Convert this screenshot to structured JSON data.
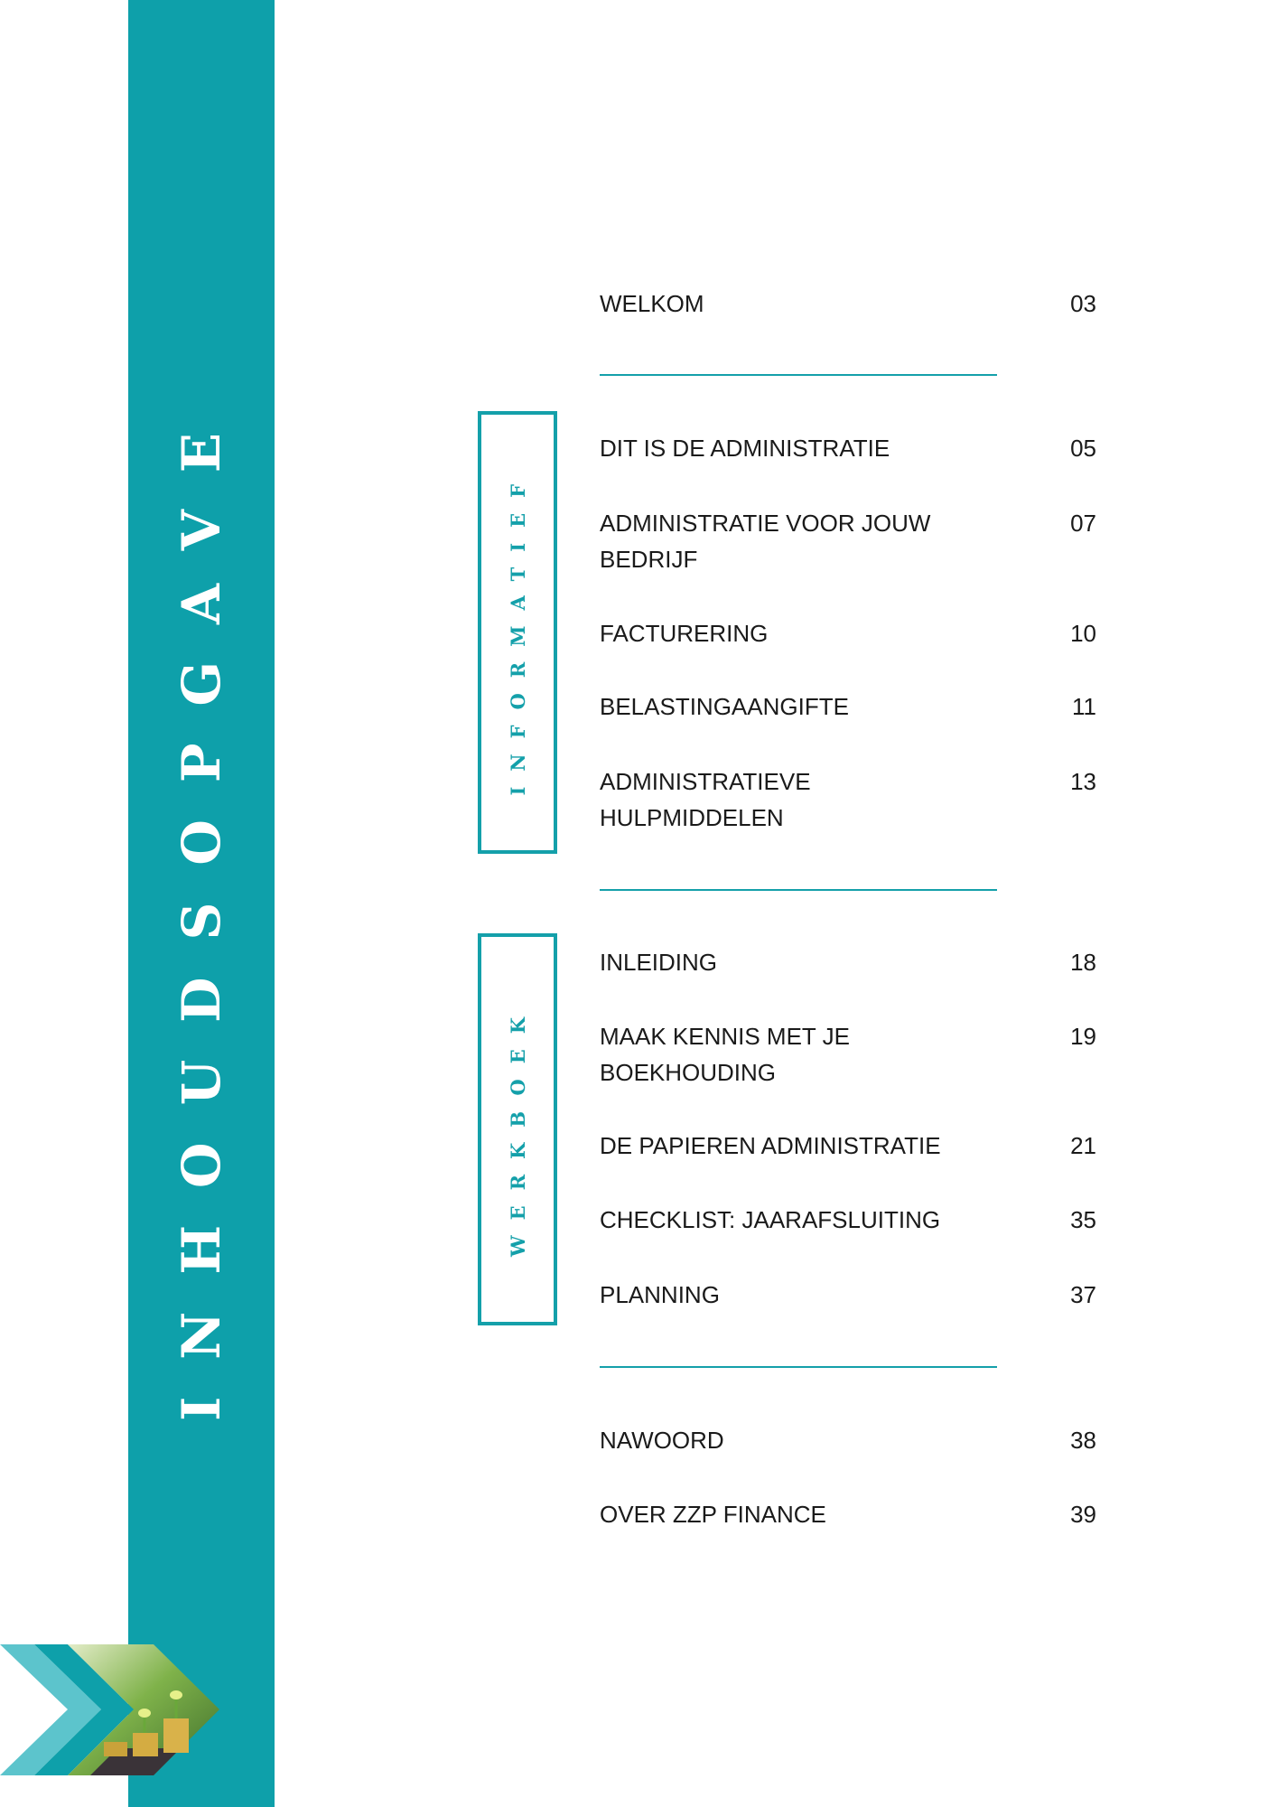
{
  "title": "INHOUDSOPGAVE",
  "colors": {
    "accent": "#0ea0aa",
    "light_accent": "#5cc4cc"
  },
  "sections": [
    {
      "label": "INFORMATIEF"
    },
    {
      "label": "WERKBOEK"
    }
  ],
  "entries": [
    {
      "label": "WELKOM",
      "page": "03"
    },
    {
      "label": "DIT IS DE ADMINISTRATIE",
      "page": "05"
    },
    {
      "label": "ADMINISTRATIE VOOR JOUW BEDRIJF",
      "page": "07"
    },
    {
      "label": "FACTURERING",
      "page": "10"
    },
    {
      "label": "BELASTINGAANGIFTE",
      "page": "11"
    },
    {
      "label": "ADMINISTRATIEVE HULPMIDDELEN",
      "page": "13"
    },
    {
      "label": "INLEIDING",
      "page": "18"
    },
    {
      "label": "MAAK KENNIS MET JE BOEKHOUDING",
      "page": "19"
    },
    {
      "label": "DE PAPIEREN ADMINISTRATIE",
      "page": "21"
    },
    {
      "label": "CHECKLIST: JAARAFSLUITING",
      "page": "35"
    },
    {
      "label": "PLANNING",
      "page": "37"
    },
    {
      "label": "NAWOORD",
      "page": "38"
    },
    {
      "label": "OVER ZZP FINANCE",
      "page": "39"
    }
  ],
  "decoration": {
    "image": "chevron-with-coins-and-seedlings"
  }
}
